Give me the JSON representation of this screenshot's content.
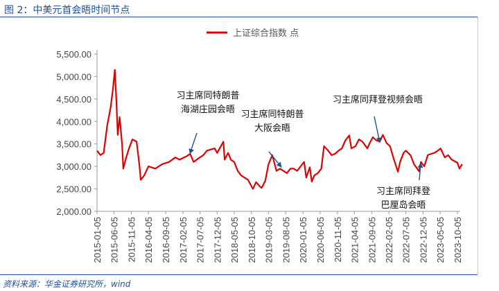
{
  "header": {
    "title": "图 2：中美元首会晤时间节点"
  },
  "footer": {
    "source": "资料来源：华金证券研究所，wind"
  },
  "colors": {
    "series": "#e00000",
    "title": "#1f4e9d",
    "axis": "#999999",
    "annotation_arrow": "#1f4e9d"
  },
  "chart_data": {
    "type": "line",
    "legend": {
      "position": "top-center"
    },
    "grid": false,
    "ylim": [
      2000,
      5500
    ],
    "yticks": [
      "2,000.00",
      "2,500.00",
      "3,000.00",
      "3,500.00",
      "4,000.00",
      "4,500.00",
      "5,000.00",
      "5,500.00"
    ],
    "ytick_values": [
      2000,
      2500,
      3000,
      3500,
      4000,
      4500,
      5000,
      5500
    ],
    "xticks": [
      "2015-01-05",
      "2015-06-05",
      "2015-11-05",
      "2016-04-05",
      "2016-09-05",
      "2017-02-05",
      "2017-07-05",
      "2017-12-05",
      "2018-05-05",
      "2018-10-05",
      "2019-03-05",
      "2019-08-05",
      "2020-01-05",
      "2020-06-05",
      "2020-11-05",
      "2021-04-05",
      "2021-09-05",
      "2022-02-05",
      "2022-07-05",
      "2022-12-05",
      "2023-05-05",
      "2023-10-05"
    ],
    "series": [
      {
        "name": "上证综合指数 点",
        "x": [
          "2015-01-05",
          "2015-02-05",
          "2015-03-05",
          "2015-04-05",
          "2015-05-05",
          "2015-05-25",
          "2015-06-12",
          "2015-06-25",
          "2015-07-08",
          "2015-07-24",
          "2015-08-15",
          "2015-08-26",
          "2015-09-15",
          "2015-10-15",
          "2015-11-15",
          "2015-12-22",
          "2016-01-15",
          "2016-01-28",
          "2016-02-28",
          "2016-04-05",
          "2016-06-05",
          "2016-08-05",
          "2016-10-05",
          "2016-11-29",
          "2017-01-05",
          "2017-03-05",
          "2017-04-10",
          "2017-05-10",
          "2017-07-05",
          "2017-08-05",
          "2017-09-05",
          "2017-11-13",
          "2017-12-05",
          "2018-01-29",
          "2018-02-09",
          "2018-03-12",
          "2018-04-05",
          "2018-05-05",
          "2018-06-05",
          "2018-07-05",
          "2018-08-05",
          "2018-09-05",
          "2018-10-18",
          "2018-11-15",
          "2018-12-20",
          "2019-01-03",
          "2019-02-05",
          "2019-03-05",
          "2019-04-08",
          "2019-05-15",
          "2019-06-15",
          "2019-07-15",
          "2019-08-15",
          "2019-09-15",
          "2019-10-15",
          "2019-11-15",
          "2019-12-30",
          "2020-01-15",
          "2020-02-03",
          "2020-03-05",
          "2020-03-23",
          "2020-04-15",
          "2020-05-15",
          "2020-06-15",
          "2020-07-09",
          "2020-08-15",
          "2020-09-15",
          "2020-10-15",
          "2020-11-15",
          "2020-12-15",
          "2021-01-15",
          "2021-02-18",
          "2021-03-09",
          "2021-04-15",
          "2021-05-15",
          "2021-06-15",
          "2021-07-28",
          "2021-08-15",
          "2021-09-15",
          "2021-10-15",
          "2021-11-15",
          "2021-12-13",
          "2022-01-15",
          "2022-02-15",
          "2022-03-15",
          "2022-04-26",
          "2022-05-15",
          "2022-06-15",
          "2022-07-05",
          "2022-08-15",
          "2022-09-15",
          "2022-10-31",
          "2022-11-15",
          "2022-12-15",
          "2023-01-15",
          "2023-02-15",
          "2023-03-15",
          "2023-04-15",
          "2023-05-09",
          "2023-06-15",
          "2023-07-15",
          "2023-08-15",
          "2023-09-15",
          "2023-10-05",
          "2023-10-23",
          "2023-11-15"
        ],
        "y": [
          3350,
          3250,
          3300,
          3900,
          4300,
          4700,
          5150,
          4500,
          3700,
          4100,
          3500,
          2950,
          3150,
          3400,
          3600,
          3550,
          3050,
          2700,
          2800,
          3000,
          2950,
          3050,
          3100,
          3200,
          3150,
          3220,
          3280,
          3100,
          3200,
          3250,
          3350,
          3400,
          3300,
          3550,
          3150,
          3300,
          3150,
          3100,
          2900,
          2800,
          2750,
          2700,
          2500,
          2650,
          2550,
          2520,
          2680,
          3050,
          3250,
          2900,
          2950,
          2900,
          2850,
          2950,
          2950,
          2900,
          3050,
          3100,
          2750,
          2980,
          2660,
          2800,
          2850,
          2950,
          3450,
          3350,
          3250,
          3280,
          3350,
          3400,
          3580,
          3690,
          3400,
          3450,
          3600,
          3550,
          3400,
          3500,
          3650,
          3580,
          3550,
          3700,
          3520,
          3450,
          3200,
          2880,
          3100,
          3300,
          3350,
          3250,
          3050,
          2890,
          3100,
          3000,
          3250,
          3280,
          3300,
          3350,
          3400,
          3200,
          3250,
          3150,
          3110,
          3080,
          2950,
          3050
        ]
      }
    ],
    "annotations": [
      {
        "lines": [
          "习主席同特朗普",
          "海湖庄园会晤"
        ],
        "x": "2017-04-07",
        "y": 3280
      },
      {
        "lines": [
          "习主席同特朗普",
          "大阪会晤"
        ],
        "x": "2019-06-29",
        "y": 2980
      },
      {
        "lines": [
          "习主席同拜登视频会晤"
        ],
        "x": "2021-11-16",
        "y": 3530
      },
      {
        "lines": [
          "习主席同拜登",
          "巴厘岛会晤"
        ],
        "x": "2022-11-14",
        "y": 3080
      }
    ]
  }
}
